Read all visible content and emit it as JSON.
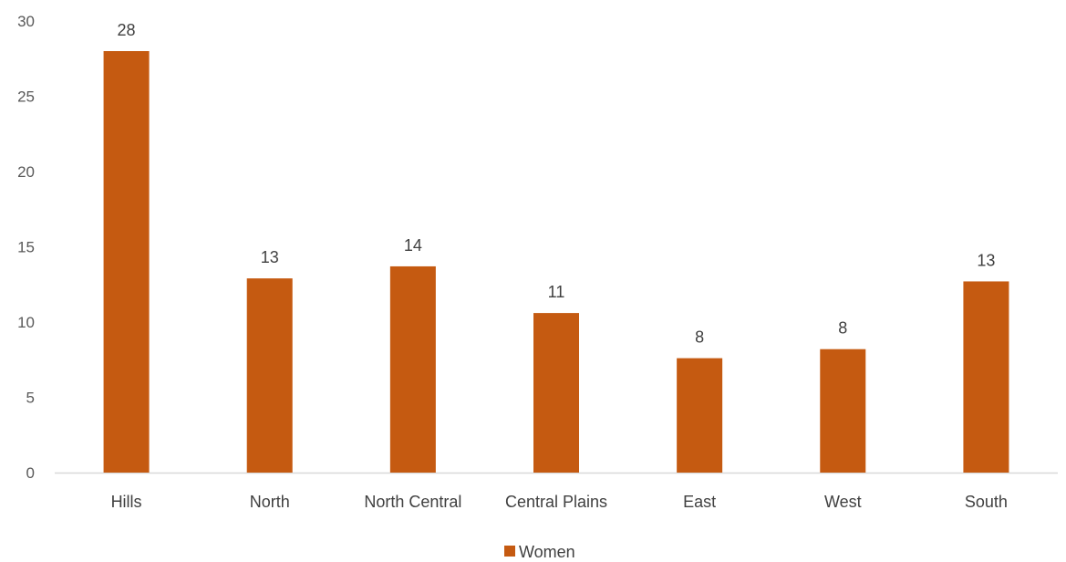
{
  "chart_data": {
    "type": "bar",
    "categories": [
      "Hills",
      "North",
      "North Central",
      "Central Plains",
      "East",
      "West",
      "South"
    ],
    "series": [
      {
        "name": "Women",
        "values": [
          28,
          12.9,
          13.7,
          10.6,
          7.6,
          8.2,
          12.7
        ],
        "labels": [
          "28",
          "13",
          "14",
          "11",
          "8",
          "8",
          "13"
        ]
      }
    ],
    "title": "",
    "xlabel": "",
    "ylabel": "",
    "ylim": [
      0,
      30
    ],
    "yticks": [
      0,
      5,
      10,
      15,
      20,
      25,
      30
    ],
    "grid": false,
    "legend": "bottom",
    "colors": {
      "bar": "#C55A11",
      "axis": "#D9D9D9"
    }
  }
}
